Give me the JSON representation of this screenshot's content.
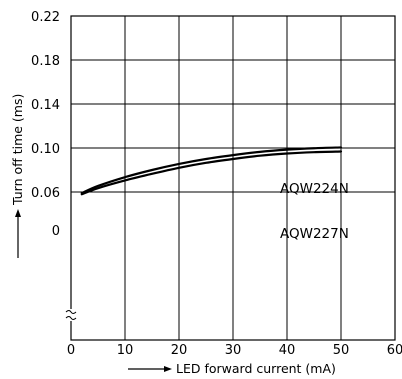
{
  "chart_data": {
    "type": "line",
    "title": "",
    "xlabel": "LED forward current (mA)",
    "ylabel": "Turn off time (ms)",
    "xlim": [
      0,
      60
    ],
    "ylim": [
      0.02,
      0.22
    ],
    "x_ticks": [
      0,
      10,
      20,
      30,
      40,
      50,
      60
    ],
    "x_tick_labels": [
      "0",
      "10",
      "20",
      "30",
      "40",
      "50",
      "60"
    ],
    "y_ticks": [
      0.06,
      0.1,
      0.14,
      0.18,
      0.22
    ],
    "y_tick_labels": [
      "0.06",
      "0.10",
      "0.14",
      "0.18",
      "0.22"
    ],
    "y_origin_label": "0",
    "y_axis_break": true,
    "grid": true,
    "series": [
      {
        "name": "AQW224N",
        "x": [
          2,
          5,
          10,
          15,
          20,
          25,
          30,
          35,
          40,
          45,
          50
        ],
        "y": [
          0.059,
          0.0655,
          0.0735,
          0.08,
          0.0855,
          0.09,
          0.0935,
          0.0965,
          0.0985,
          0.0998,
          0.1005
        ]
      },
      {
        "name": "AQW227N",
        "x": [
          2,
          5,
          10,
          15,
          20,
          25,
          30,
          35,
          40,
          45,
          50
        ],
        "y": [
          0.058,
          0.0635,
          0.0705,
          0.0765,
          0.082,
          0.0865,
          0.09,
          0.093,
          0.095,
          0.0962,
          0.0968
        ]
      }
    ]
  }
}
